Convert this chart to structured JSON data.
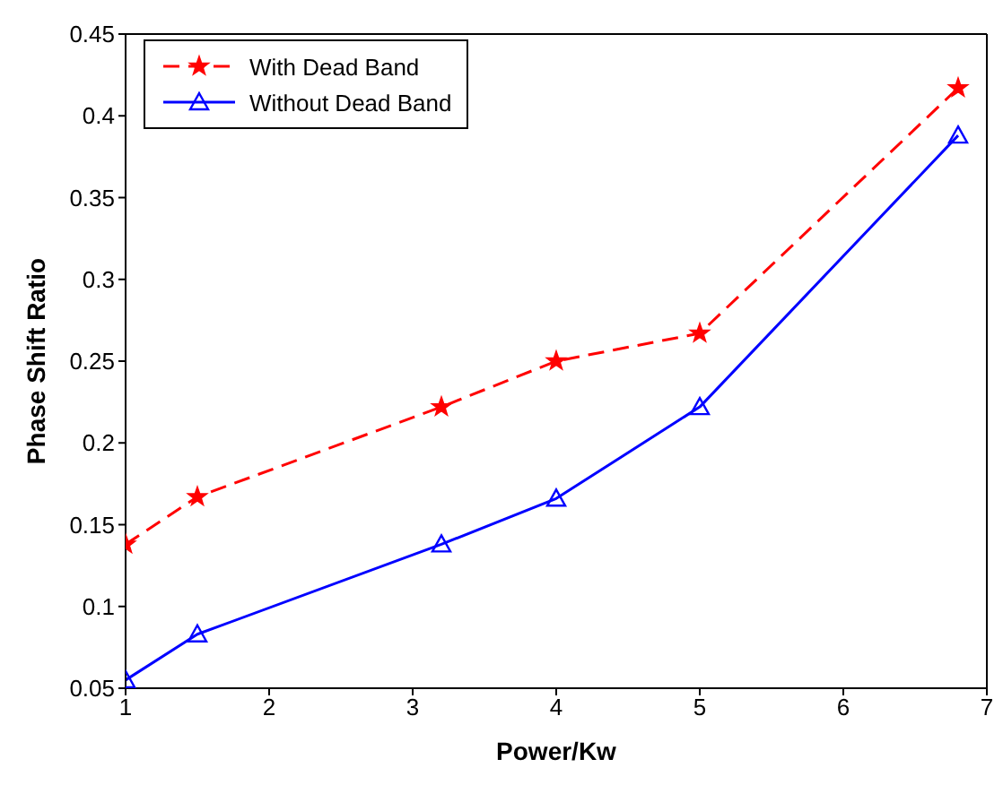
{
  "chart_data": {
    "type": "line",
    "xlabel": "Power/Kw",
    "ylabel": "Phase Shift Ratio",
    "x": [
      1,
      1.5,
      3.2,
      4,
      5,
      6.8
    ],
    "xlim": [
      1,
      7
    ],
    "xticks": [
      1,
      2,
      3,
      4,
      5,
      6,
      7
    ],
    "ylim": [
      0.05,
      0.45
    ],
    "yticks": [
      0.05,
      0.1,
      0.15,
      0.2,
      0.25,
      0.3,
      0.35,
      0.4,
      0.45
    ],
    "legend": "top left",
    "grid": false,
    "series": [
      {
        "name": "With Dead Band",
        "color": "#ff0000",
        "line_style": "dashed",
        "marker": "star",
        "values": [
          0.138,
          0.167,
          0.222,
          0.25,
          0.267,
          0.417
        ]
      },
      {
        "name": "Without Dead Band",
        "color": "#0000ff",
        "line_style": "solid",
        "marker": "triangle",
        "values": [
          0.055,
          0.083,
          0.138,
          0.166,
          0.222,
          0.388
        ]
      }
    ]
  }
}
